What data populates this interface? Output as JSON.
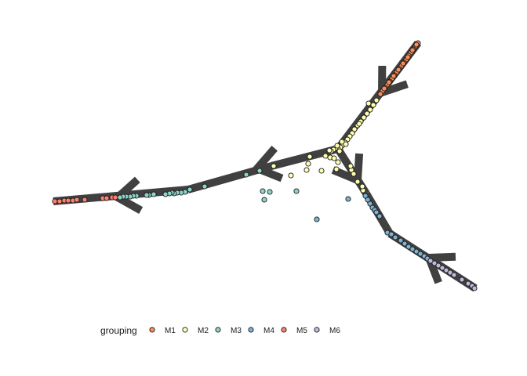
{
  "chart_data": {
    "type": "scatter",
    "title": "",
    "xlabel": "",
    "ylabel": "",
    "axes_visible": false,
    "grid": false,
    "legend": {
      "title": "grouping",
      "position": "bottom",
      "entries": [
        {
          "label": "M1",
          "color": "#fc8d59"
        },
        {
          "label": "M2",
          "color": "#ffffb2"
        },
        {
          "label": "M3",
          "color": "#8dd3c7"
        },
        {
          "label": "M4",
          "color": "#80b1d3"
        },
        {
          "label": "M5",
          "color": "#fb8072"
        },
        {
          "label": "M6",
          "color": "#bebada"
        }
      ]
    },
    "trajectory": {
      "color": "#404040",
      "segments": [
        [
          [
            431,
            190
          ],
          [
            533,
            55
          ]
        ],
        [
          [
            431,
            190
          ],
          [
            346,
            212
          ]
        ],
        [
          [
            346,
            212
          ],
          [
            240,
            242
          ]
        ],
        [
          [
            240,
            242
          ],
          [
            68,
            257
          ]
        ],
        [
          [
            431,
            190
          ],
          [
            467,
            247
          ]
        ],
        [
          [
            467,
            247
          ],
          [
            497,
            298
          ]
        ],
        [
          [
            497,
            298
          ],
          [
            606,
            368
          ]
        ]
      ],
      "arrows": [
        {
          "tip": [
            487,
            118
          ],
          "from": [
            533,
            55
          ]
        },
        {
          "tip": [
            328,
            215
          ],
          "from": [
            431,
            190
          ]
        },
        {
          "tip": [
            150,
            252
          ],
          "from": [
            240,
            242
          ]
        },
        {
          "tip": [
            456,
            230
          ],
          "from": [
            431,
            190
          ]
        },
        {
          "tip": [
            547,
            329
          ],
          "from": [
            606,
            368
          ]
        }
      ]
    },
    "series": [
      {
        "name": "M1",
        "color": "#fc8d59",
        "points": [
          [
            533,
            55
          ],
          [
            530,
            59
          ],
          [
            527,
            63
          ],
          [
            524,
            67
          ],
          [
            521,
            71
          ],
          [
            518,
            76
          ],
          [
            515,
            80
          ],
          [
            512,
            84
          ],
          [
            509,
            88
          ],
          [
            506,
            92
          ],
          [
            503,
            96
          ],
          [
            500,
            100
          ],
          [
            497,
            104
          ],
          [
            494,
            108
          ],
          [
            491,
            112
          ],
          [
            488,
            116
          ],
          [
            485,
            120
          ],
          [
            531,
            57
          ],
          [
            526,
            64
          ],
          [
            520,
            73
          ],
          [
            514,
            81
          ],
          [
            508,
            89
          ],
          [
            502,
            97
          ],
          [
            496,
            105
          ],
          [
            490,
            113
          ]
        ]
      },
      {
        "name": "M2",
        "color": "#ffffb2",
        "points": [
          [
            480,
            128
          ],
          [
            476,
            134
          ],
          [
            472,
            140
          ],
          [
            468,
            145
          ],
          [
            464,
            150
          ],
          [
            460,
            155
          ],
          [
            456,
            160
          ],
          [
            452,
            165
          ],
          [
            449,
            170
          ],
          [
            446,
            174
          ],
          [
            443,
            178
          ],
          [
            440,
            182
          ],
          [
            437,
            185
          ],
          [
            434,
            188
          ],
          [
            431,
            190
          ],
          [
            428,
            189
          ],
          [
            425,
            191
          ],
          [
            422,
            193
          ],
          [
            420,
            192
          ],
          [
            433,
            193
          ],
          [
            430,
            186
          ],
          [
            436,
            181
          ],
          [
            441,
            184
          ],
          [
            448,
            217
          ],
          [
            451,
            222
          ],
          [
            447,
            212
          ],
          [
            431,
            207
          ],
          [
            429,
            216
          ],
          [
            421,
            201
          ],
          [
            415,
            199
          ],
          [
            426,
            202
          ],
          [
            395,
            200
          ],
          [
            391,
            217
          ],
          [
            393,
            209
          ],
          [
            410,
            218
          ],
          [
            371,
            224
          ],
          [
            349,
            212
          ],
          [
            456,
            232
          ],
          [
            463,
            243
          ],
          [
            462,
            238
          ],
          [
            470,
            132
          ],
          [
            458,
            158
          ]
        ]
      },
      {
        "name": "M3",
        "color": "#8dd3c7",
        "points": [
          [
            331,
            218
          ],
          [
            314,
            223
          ],
          [
            261,
            238
          ],
          [
            242,
            242
          ],
          [
            236,
            245
          ],
          [
            231,
            246
          ],
          [
            226,
            246
          ],
          [
            222,
            247
          ],
          [
            219,
            246
          ],
          [
            216,
            247
          ],
          [
            211,
            248
          ],
          [
            196,
            248
          ],
          [
            190,
            249
          ],
          [
            187,
            249
          ],
          [
            174,
            250
          ],
          [
            170,
            250
          ],
          [
            166,
            251
          ],
          [
            161,
            251
          ],
          [
            157,
            251
          ],
          [
            153,
            252
          ],
          [
            335,
            244
          ],
          [
            344,
            245
          ],
          [
            337,
            255
          ],
          [
            378,
            244
          ]
        ]
      },
      {
        "name": "M4",
        "color": "#80b1d3",
        "points": [
          [
            466,
            250
          ],
          [
            469,
            255
          ],
          [
            472,
            260
          ],
          [
            475,
            265
          ],
          [
            478,
            268
          ],
          [
            480,
            271
          ],
          [
            484,
            276
          ],
          [
            494,
            297
          ],
          [
            499,
            299
          ],
          [
            504,
            303
          ],
          [
            511,
            307
          ],
          [
            516,
            311
          ],
          [
            521,
            315
          ],
          [
            526,
            318
          ],
          [
            531,
            321
          ],
          [
            536,
            324
          ],
          [
            541,
            327
          ],
          [
            545,
            330
          ],
          [
            444,
            254
          ],
          [
            404,
            280
          ]
        ]
      },
      {
        "name": "M5",
        "color": "#fb8072",
        "points": [
          [
            70,
            257
          ],
          [
            76,
            257
          ],
          [
            82,
            256
          ],
          [
            87,
            256
          ],
          [
            93,
            256
          ],
          [
            98,
            255
          ],
          [
            108,
            255
          ],
          [
            131,
            253
          ],
          [
            136,
            253
          ],
          [
            143,
            252
          ],
          [
            147,
            252
          ]
        ]
      },
      {
        "name": "M6",
        "color": "#bebada",
        "points": [
          [
            549,
            333
          ],
          [
            554,
            336
          ],
          [
            559,
            339
          ],
          [
            564,
            342
          ],
          [
            569,
            345
          ],
          [
            574,
            348
          ],
          [
            579,
            351
          ],
          [
            589,
            357
          ],
          [
            597,
            362
          ],
          [
            602,
            365
          ],
          [
            605,
            368
          ]
        ]
      }
    ]
  }
}
